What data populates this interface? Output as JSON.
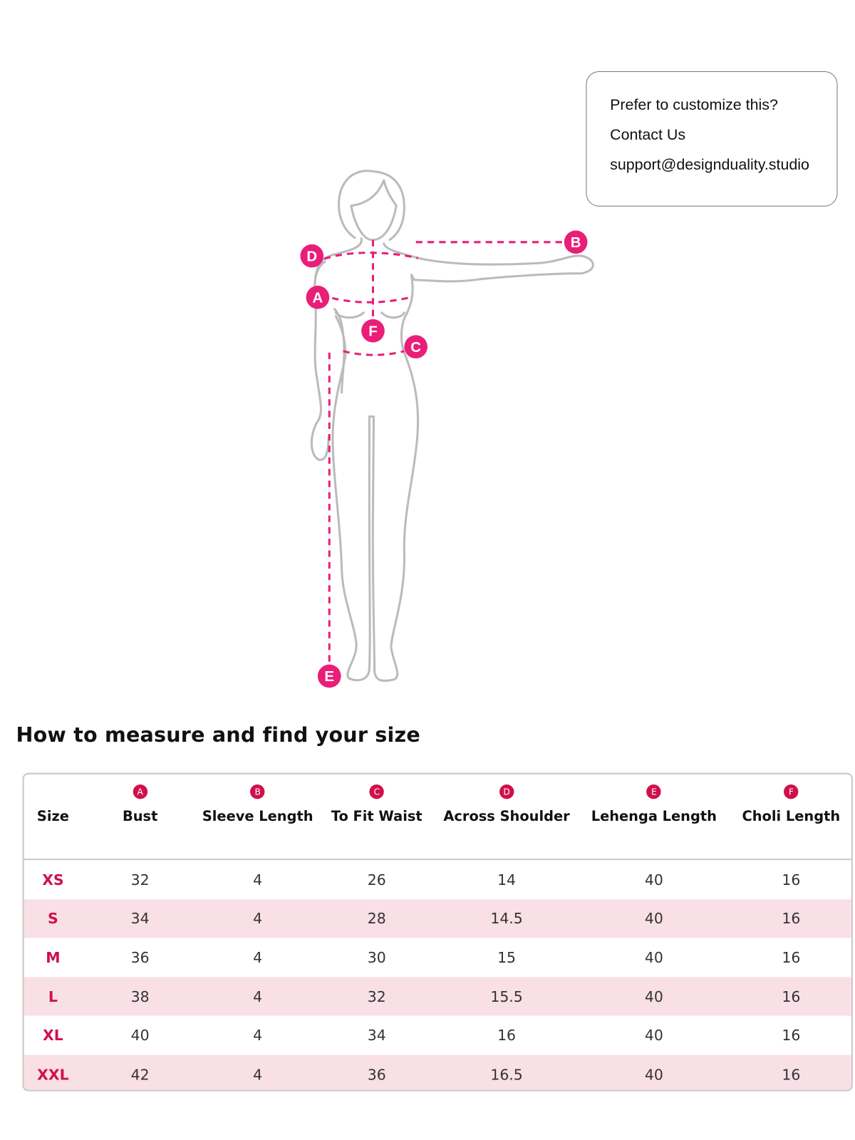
{
  "contact": {
    "line1": "Prefer to customize this?",
    "line2": "Contact Us",
    "email": "support@designduality.studio"
  },
  "figure": {
    "markers": [
      "A",
      "B",
      "C",
      "D",
      "E",
      "F"
    ],
    "accent": "#e91e78",
    "outline": "#bbbbbb"
  },
  "title": "How to measure and find your size",
  "table": {
    "accent": "#d0104c",
    "row_highlight": "#f9dfe6",
    "headers": [
      {
        "label": "Size",
        "badge": ""
      },
      {
        "label": "Bust",
        "badge": "A"
      },
      {
        "label": "Sleeve Length",
        "badge": "B"
      },
      {
        "label": "To Fit  Waist",
        "badge": "C"
      },
      {
        "label": "Across Shoulder",
        "badge": "D"
      },
      {
        "label": "Lehenga  Length",
        "badge": "E"
      },
      {
        "label": "Choli  Length",
        "badge": "F"
      }
    ],
    "rows": [
      [
        "XS",
        "32",
        "4",
        "26",
        "14",
        "40",
        "16"
      ],
      [
        "S",
        "34",
        "4",
        "28",
        "14.5",
        "40",
        "16"
      ],
      [
        "M",
        "36",
        "4",
        "30",
        "15",
        "40",
        "16"
      ],
      [
        "L",
        "38",
        "4",
        "32",
        "15.5",
        "40",
        "16"
      ],
      [
        "XL",
        "40",
        "4",
        "34",
        "16",
        "40",
        "16"
      ],
      [
        "XXL",
        "42",
        "4",
        "36",
        "16.5",
        "40",
        "16"
      ]
    ]
  }
}
